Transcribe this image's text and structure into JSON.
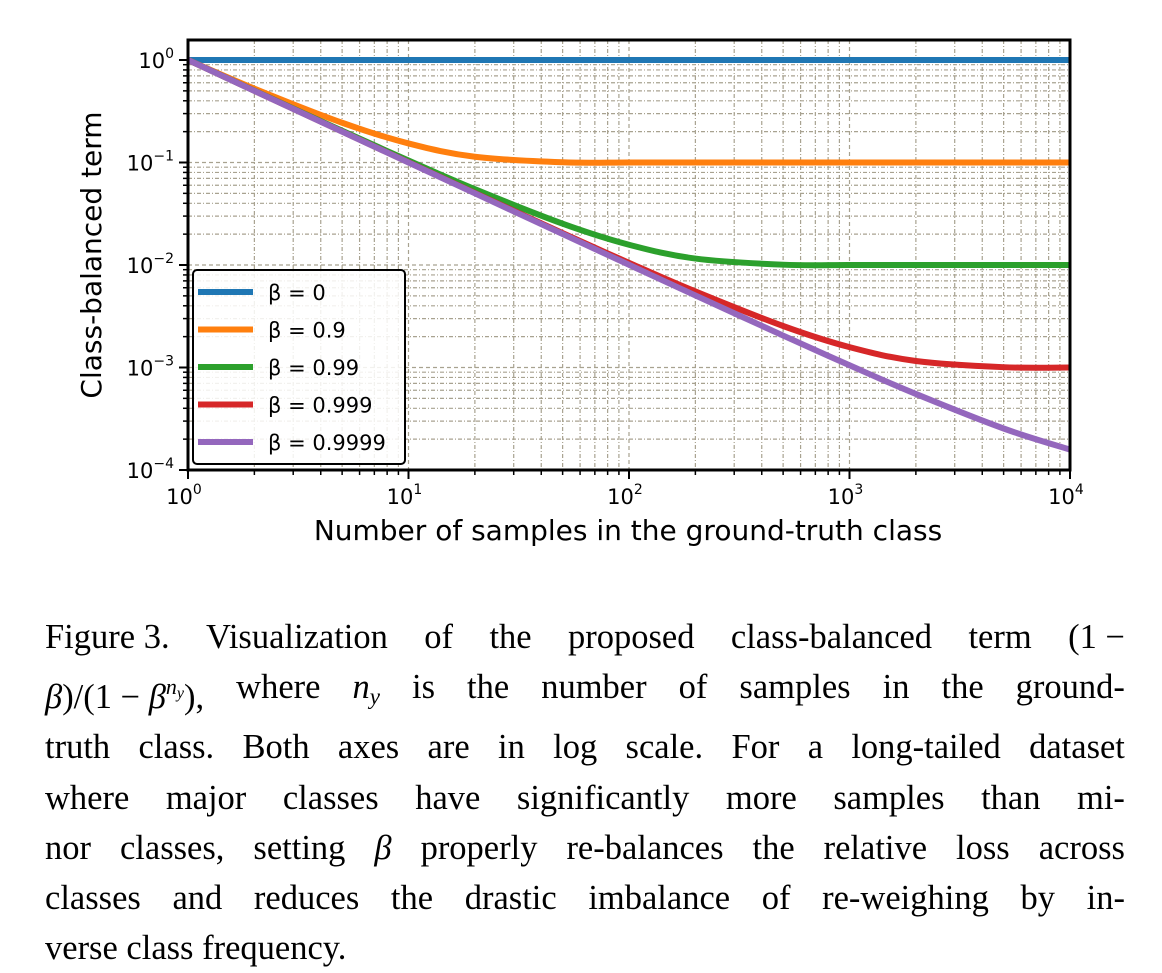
{
  "chart_data": {
    "type": "line",
    "title": "",
    "xlabel": "Number of samples in the ground-truth class",
    "ylabel": "Class-balanced term",
    "xscale": "log",
    "yscale": "log",
    "xlim": [
      1,
      10000
    ],
    "ylim": [
      0.0001,
      1.57
    ],
    "xticks": [
      {
        "base": "10",
        "exp": "0",
        "v": 1
      },
      {
        "base": "10",
        "exp": "1",
        "v": 10
      },
      {
        "base": "10",
        "exp": "2",
        "v": 100
      },
      {
        "base": "10",
        "exp": "3",
        "v": 1000
      },
      {
        "base": "10",
        "exp": "4",
        "v": 10000
      }
    ],
    "yticks": [
      {
        "base": "10",
        "exp": "0",
        "v": 1
      },
      {
        "base": "10",
        "exp": "−1",
        "v": 0.1
      },
      {
        "base": "10",
        "exp": "−2",
        "v": 0.01
      },
      {
        "base": "10",
        "exp": "−3",
        "v": 0.001
      },
      {
        "base": "10",
        "exp": "−4",
        "v": 0.0001
      }
    ],
    "grid": true,
    "grid_color": "#a8a290",
    "legend_position": "lower-left",
    "x": [
      1,
      2,
      5,
      10,
      20,
      50,
      100,
      200,
      500,
      1000,
      2000,
      5000,
      10000
    ],
    "series": [
      {
        "name": "β = 0",
        "color": "#1f77b4",
        "values": [
          1,
          1,
          1,
          1,
          1,
          1,
          1,
          1,
          1,
          1,
          1,
          1,
          1
        ]
      },
      {
        "name": "β = 0.9",
        "color": "#ff7f0e",
        "values": [
          1,
          0.526,
          0.2442,
          0.1535,
          0.1138,
          0.1005,
          0.1,
          0.1,
          0.1,
          0.1,
          0.1,
          0.1,
          0.1
        ]
      },
      {
        "name": "β = 0.99",
        "color": "#2ca02c",
        "values": [
          1,
          0.5025,
          0.204,
          0.1046,
          0.0549,
          0.0253,
          0.01577,
          0.01155,
          0.01007,
          0.01,
          0.01,
          0.01,
          0.01
        ]
      },
      {
        "name": "β = 0.999",
        "color": "#d62728",
        "values": [
          1,
          0.5003,
          0.2004,
          0.1005,
          0.0505,
          0.0205,
          0.0105,
          0.00552,
          0.00254,
          0.00158,
          0.001157,
          0.001007,
          0.001
        ]
      },
      {
        "name": "β = 0.9999",
        "color": "#9467bd",
        "values": [
          1,
          0.50003,
          0.20004,
          0.10005,
          0.05005,
          0.02005,
          0.01005,
          0.00505,
          0.00205,
          0.001051,
          0.000552,
          0.000254,
          0.000158
        ]
      }
    ]
  },
  "caption": {
    "lines": [
      [
        {
          "t": "Figure 3."
        },
        {
          "t": "Visualization"
        },
        {
          "t": "of"
        },
        {
          "t": "the"
        },
        {
          "t": "proposed"
        },
        {
          "t": "class-balanced"
        },
        {
          "t": "term"
        },
        {
          "t": "(1 −"
        }
      ],
      [
        {
          "t": "β",
          "i": true
        },
        {
          "t": ")/(1 − ",
          "join": true
        },
        {
          "t": "β",
          "i": true,
          "join": true
        },
        {
          "t": "n",
          "i": true,
          "sup": true,
          "join": true
        },
        {
          "t": "y",
          "i": true,
          "sub2": true,
          "join": true
        },
        {
          "t": "),",
          "join": true
        },
        {
          "t": "where"
        },
        {
          "t": "n",
          "i": true
        },
        {
          "t": "y",
          "i": true,
          "sub": true,
          "join": true
        },
        {
          "t": "is"
        },
        {
          "t": "the"
        },
        {
          "t": "number"
        },
        {
          "t": "of"
        },
        {
          "t": "samples"
        },
        {
          "t": "in"
        },
        {
          "t": "the"
        },
        {
          "t": "ground-"
        }
      ],
      [
        {
          "t": "truth"
        },
        {
          "t": "class."
        },
        {
          "t": "Both"
        },
        {
          "t": "axes"
        },
        {
          "t": "are"
        },
        {
          "t": "in"
        },
        {
          "t": "log"
        },
        {
          "t": "scale."
        },
        {
          "t": "For"
        },
        {
          "t": "a"
        },
        {
          "t": "long-tailed"
        },
        {
          "t": "dataset"
        }
      ],
      [
        {
          "t": "where"
        },
        {
          "t": "major"
        },
        {
          "t": "classes"
        },
        {
          "t": "have"
        },
        {
          "t": "significantly"
        },
        {
          "t": "more"
        },
        {
          "t": "samples"
        },
        {
          "t": "than"
        },
        {
          "t": "mi-"
        }
      ],
      [
        {
          "t": "nor"
        },
        {
          "t": "classes,"
        },
        {
          "t": "setting"
        },
        {
          "t": "β",
          "i": true
        },
        {
          "t": "properly"
        },
        {
          "t": "re-balances"
        },
        {
          "t": "the"
        },
        {
          "t": "relative"
        },
        {
          "t": "loss"
        },
        {
          "t": "across"
        }
      ],
      [
        {
          "t": "classes"
        },
        {
          "t": "and"
        },
        {
          "t": "reduces"
        },
        {
          "t": "the"
        },
        {
          "t": "drastic"
        },
        {
          "t": "imbalance"
        },
        {
          "t": "of"
        },
        {
          "t": "re-weighing"
        },
        {
          "t": "by"
        },
        {
          "t": "in-"
        }
      ],
      [
        {
          "t": "verse class frequency."
        }
      ]
    ]
  }
}
